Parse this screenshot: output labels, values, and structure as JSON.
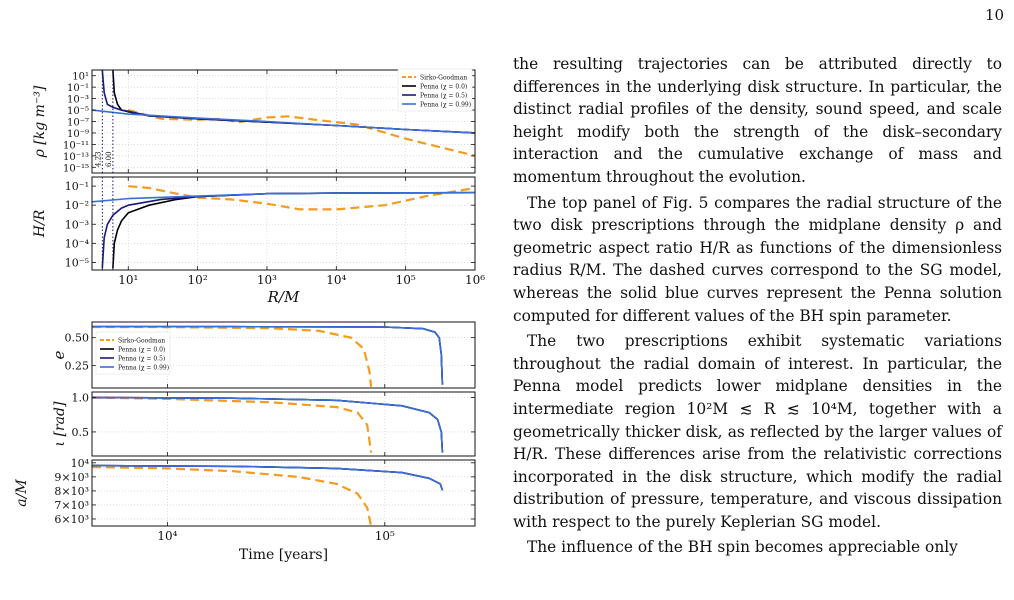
{
  "page": {
    "number": "10"
  },
  "paragraphs": [
    "the resulting trajectories can be attributed directly to differences in the underlying disk structure. In particular, the distinct radial profiles of the density, sound speed, and scale height modify both the strength of the disk–secondary interaction and the cumulative exchange of mass and momentum throughout the evolution.",
    "The top panel of Fig. 5 compares the radial structure of the two disk prescriptions through the midplane density ρ and geometric aspect ratio H/R as functions of the dimensionless radius R/M. The dashed curves correspond to the SG model, whereas the solid blue curves represent the Penna solution computed for different values of the BH spin parameter.",
    "The two prescriptions exhibit systematic variations throughout the radial domain of interest. In particular, the Penna model predicts lower midplane densities in the intermediate region 10²M ≲ R ≲ 10⁴M, together with a geometrically thicker disk, as reflected by the larger values of H/R. These differences arise from the relativistic corrections incorporated in the disk structure, which modify the radial distribution of pressure, temperature, and viscous dissipation with respect to the purely Keplerian SG model.",
    "The influence of the BH spin becomes appreciable only"
  ],
  "colors": {
    "sg": "#f39c20",
    "penna0": "#000000",
    "penna05": "#1a1a7a",
    "penna099": "#3a6fd8"
  },
  "chart_data": [
    {
      "type": "line",
      "xlabel": "R/M",
      "ylabel": "ρ [kg m⁻³]",
      "xscale": "log",
      "yscale": "log",
      "xlim": [
        3,
        1000000
      ],
      "ylim": [
        1e-16,
        100
      ],
      "x_ticks": [
        "10¹",
        "10²",
        "10³",
        "10⁴",
        "10⁵",
        "10⁶"
      ],
      "y_ticks": [
        "10¹",
        "10⁻¹",
        "10⁻³",
        "10⁻⁵",
        "10⁻⁷",
        "10⁻⁹",
        "10⁻¹¹",
        "10⁻¹³",
        "10⁻¹⁵"
      ],
      "legend": [
        "Sirko-Goodman",
        "Penna (χ = 0.0)",
        "Penna (χ = 0.5)",
        "Penna (χ = 0.99)"
      ],
      "legend_position": "top-right",
      "vlines": [
        "4.23",
        "6.00"
      ],
      "series": [
        {
          "name": "Sirko-Goodman",
          "x": [
            10,
            30,
            100,
            200,
            400,
            1000,
            2000,
            5000,
            20000,
            100000,
            1000000
          ],
          "y": [
            1e-05,
            3e-07,
            2e-07,
            3e-07,
            8e-08,
            5e-07,
            8e-07,
            2e-07,
            3e-08,
            1e-10,
            1e-13
          ]
        },
        {
          "name": "Penna (χ = 0.0)",
          "x": [
            6.0,
            6.3,
            7,
            8,
            10,
            20,
            100,
            1000,
            10000,
            100000,
            1000000
          ],
          "y": [
            100,
            0.01,
            0.0001,
            1e-05,
            5e-06,
            1e-06,
            3e-07,
            8e-08,
            2e-08,
            4e-09,
            1e-09
          ]
        },
        {
          "name": "Penna (χ = 0.5)",
          "x": [
            4.23,
            4.5,
            5,
            6,
            8,
            10,
            20,
            100,
            1000,
            10000,
            100000,
            1000000
          ],
          "y": [
            100,
            0.01,
            0.0001,
            3e-05,
            1e-05,
            6e-06,
            1e-06,
            3e-07,
            8e-08,
            2e-08,
            4e-09,
            1e-09
          ]
        },
        {
          "name": "Penna (χ = 0.99)",
          "x": [
            3,
            10,
            100,
            1000,
            10000,
            100000,
            1000000
          ],
          "y": [
            1e-05,
            2e-06,
            4e-07,
            1e-07,
            2e-08,
            4e-09,
            1e-09
          ]
        }
      ]
    },
    {
      "type": "line",
      "xlabel": "R/M",
      "ylabel": "H/R",
      "xscale": "log",
      "yscale": "log",
      "xlim": [
        3,
        1000000
      ],
      "ylim": [
        4e-06,
        0.3
      ],
      "x_ticks": [
        "10¹",
        "10²",
        "10³",
        "10⁴",
        "10⁵",
        "10⁶"
      ],
      "y_ticks": [
        "10⁻¹",
        "10⁻²",
        "10⁻³",
        "10⁻⁴",
        "10⁻⁵"
      ],
      "series": [
        {
          "name": "Sirko-Goodman",
          "x": [
            10,
            20,
            50,
            100,
            300,
            1000,
            3000,
            10000,
            50000,
            200000,
            1000000
          ],
          "y": [
            0.1,
            0.08,
            0.04,
            0.025,
            0.02,
            0.012,
            0.006,
            0.006,
            0.01,
            0.03,
            0.08
          ]
        },
        {
          "name": "Penna (χ = 0.0)",
          "x": [
            6.0,
            6.3,
            7,
            8,
            10,
            20,
            50,
            100,
            1000,
            10000,
            1000000
          ],
          "y": [
            5e-06,
            0.0001,
            0.0005,
            0.0015,
            0.004,
            0.01,
            0.02,
            0.028,
            0.04,
            0.043,
            0.045
          ]
        },
        {
          "name": "Penna (χ = 0.5)",
          "x": [
            4.23,
            4.5,
            5,
            6,
            8,
            10,
            30,
            100,
            1000,
            10000,
            1000000
          ],
          "y": [
            5e-06,
            0.0002,
            0.001,
            0.003,
            0.007,
            0.01,
            0.02,
            0.028,
            0.04,
            0.043,
            0.045
          ]
        },
        {
          "name": "Penna (χ = 0.99)",
          "x": [
            3,
            10,
            100,
            1000,
            10000,
            1000000
          ],
          "y": [
            0.015,
            0.022,
            0.03,
            0.04,
            0.043,
            0.045
          ]
        }
      ]
    },
    {
      "type": "line",
      "xlabel": "",
      "ylabel": "e",
      "xscale": "log",
      "xlim": [
        4500,
        260000
      ],
      "ylim": [
        0.05,
        0.64
      ],
      "y_ticks": [
        "0.50",
        "0.25"
      ],
      "legend": [
        "Sirko-Goodman",
        "Penna (χ = 0.0)",
        "Penna (χ = 0.5)",
        "Penna (χ = 0.99)"
      ],
      "legend_position": "bottom-left",
      "series": [
        {
          "name": "Sirko-Goodman",
          "x": [
            4500,
            10000,
            30000,
            50000,
            70000,
            80000,
            85000,
            86500
          ],
          "y": [
            0.595,
            0.594,
            0.585,
            0.56,
            0.5,
            0.4,
            0.2,
            0.06
          ]
        },
        {
          "name": "Penna (χ = 0.0)",
          "x": [
            4500,
            20000,
            100000,
            150000,
            170000,
            178000,
            182000,
            184000
          ],
          "y": [
            0.598,
            0.598,
            0.595,
            0.58,
            0.55,
            0.5,
            0.35,
            0.08
          ]
        },
        {
          "name": "Penna (χ = 0.5)",
          "x": [
            4500,
            20000,
            100000,
            150000,
            170000,
            178000,
            182000,
            184000
          ],
          "y": [
            0.598,
            0.598,
            0.595,
            0.58,
            0.55,
            0.5,
            0.35,
            0.08
          ]
        },
        {
          "name": "Penna (χ = 0.99)",
          "x": [
            4500,
            20000,
            100000,
            150000,
            170000,
            178000,
            182000,
            184000
          ],
          "y": [
            0.598,
            0.598,
            0.595,
            0.58,
            0.55,
            0.5,
            0.35,
            0.08
          ]
        }
      ]
    },
    {
      "type": "line",
      "xlabel": "",
      "ylabel": "ι [rad]",
      "xscale": "log",
      "xlim": [
        4500,
        260000
      ],
      "ylim": [
        0.15,
        1.08
      ],
      "y_ticks": [
        "1.0",
        "0.5"
      ],
      "series": [
        {
          "name": "Sirko-Goodman",
          "x": [
            4500,
            10000,
            30000,
            60000,
            75000,
            83000,
            86500
          ],
          "y": [
            1.0,
            0.98,
            0.93,
            0.86,
            0.78,
            0.6,
            0.2
          ]
        },
        {
          "name": "Penna (χ = 0.0)",
          "x": [
            4500,
            20000,
            60000,
            120000,
            160000,
            175000,
            182000,
            184000
          ],
          "y": [
            1.0,
            0.99,
            0.96,
            0.88,
            0.78,
            0.68,
            0.5,
            0.2
          ]
        },
        {
          "name": "Penna (χ = 0.5)",
          "x": [
            4500,
            20000,
            60000,
            120000,
            160000,
            175000,
            182000,
            184000
          ],
          "y": [
            1.0,
            0.99,
            0.96,
            0.88,
            0.78,
            0.68,
            0.5,
            0.2
          ]
        },
        {
          "name": "Penna (χ = 0.99)",
          "x": [
            4500,
            20000,
            60000,
            120000,
            160000,
            175000,
            182000,
            184000
          ],
          "y": [
            1.0,
            0.99,
            0.96,
            0.88,
            0.78,
            0.68,
            0.5,
            0.2
          ]
        }
      ]
    },
    {
      "type": "line",
      "xlabel": "Time [years]",
      "ylabel": "a/M",
      "xscale": "log",
      "xlim": [
        4500,
        260000
      ],
      "ylim": [
        5500,
        10200
      ],
      "x_ticks": [
        "10⁴",
        "10⁵"
      ],
      "y_ticks": [
        "10⁴",
        "9×10³",
        "8×10³",
        "7×10³",
        "6×10³"
      ],
      "series": [
        {
          "name": "Sirko-Goodman",
          "x": [
            4500,
            10000,
            20000,
            40000,
            60000,
            75000,
            83000,
            86500
          ],
          "y": [
            9700,
            9600,
            9400,
            9000,
            8500,
            7800,
            6800,
            5500
          ]
        },
        {
          "name": "Penna (χ = 0.0)",
          "x": [
            4500,
            20000,
            60000,
            120000,
            160000,
            180000,
            184000
          ],
          "y": [
            9800,
            9750,
            9600,
            9300,
            8900,
            8500,
            8050
          ]
        },
        {
          "name": "Penna (χ = 0.5)",
          "x": [
            4500,
            20000,
            60000,
            120000,
            160000,
            180000,
            184000
          ],
          "y": [
            9800,
            9750,
            9600,
            9300,
            8900,
            8500,
            8050
          ]
        },
        {
          "name": "Penna (χ = 0.99)",
          "x": [
            4500,
            20000,
            60000,
            120000,
            160000,
            180000,
            184000
          ],
          "y": [
            9800,
            9750,
            9600,
            9300,
            8900,
            8500,
            8050
          ]
        }
      ]
    }
  ]
}
